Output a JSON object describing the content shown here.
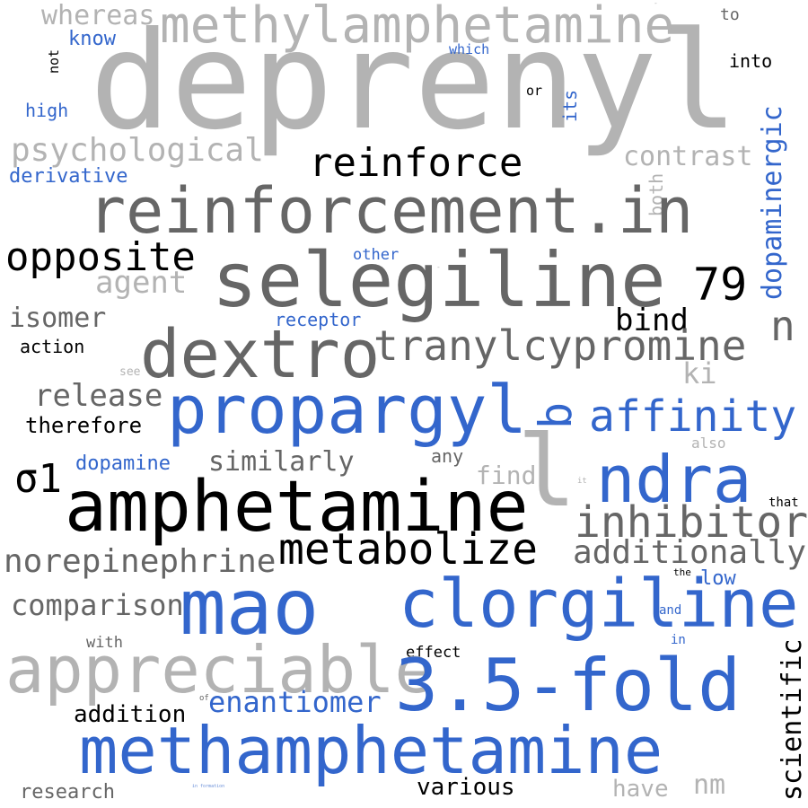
{
  "word_cloud": {
    "palette": {
      "light_gray": "#b3b3b3",
      "dark_gray": "#666666",
      "blue": "#3366cc",
      "black": "#000000",
      "light_blue": "#6a8fd8"
    },
    "words": {
      "deprenyl": "deprenyl",
      "methylamphetamine": "methylamphetamine",
      "whereas": "whereas",
      "to": "to",
      "know": "know",
      "which": "which",
      "not": "not",
      "into": "into",
      "or": "or",
      "its": "its",
      "high": "high",
      "dopaminergic": "dopaminergic",
      "psychological": "psychological",
      "reinforce": "reinforce",
      "contrast": "contrast",
      "derivative": "derivative",
      "both": "both",
      "reinforcement_in": "reinforcement.in",
      "opposite": "opposite",
      "other": "other",
      "selegiline": "selegiline",
      "seventy_nine": "79",
      "agent": "agent",
      "isomer": "isomer",
      "receptor": "receptor",
      "bind": "bind",
      "n": "n",
      "action": "action",
      "tranylcypromine": "tranylcypromine",
      "dextro": "dextro",
      "see": "see",
      "ki": "ki",
      "release": "release",
      "propargyl": "propargyl",
      "b": "b",
      "affinity": "affinity",
      "therefore": "therefore",
      "also": "also",
      "any": "any",
      "similarly": "similarly",
      "dopamine": "dopamine",
      "l": "l",
      "find": "find",
      "it": "it",
      "sigma1": "σ1",
      "ndra": "ndra",
      "that": "that",
      "amphetamine": "amphetamine",
      "inhibitor": "inhibitor",
      "metabolize": "metabolize",
      "additionally": "additionally",
      "norepinephrine": "norepinephrine",
      "the": "the",
      "low": "low",
      "mao": "mao",
      "clorgiline": "clorgiline",
      "comparison": "comparison",
      "and": "and",
      "in": "in",
      "with": "with",
      "effect": "effect",
      "appreciable": "appreciable",
      "scientific": "scientific",
      "three_five_fold": "3.5-fold",
      "of": "of",
      "enantiomer": "enantiomer",
      "addition": "addition",
      "methamphetamine": "methamphetamine",
      "tiny": "in formation",
      "various": "various",
      "nm": "nm",
      "research": "research",
      "have": "have",
      "dash1": "-",
      "dash2": "-"
    }
  }
}
